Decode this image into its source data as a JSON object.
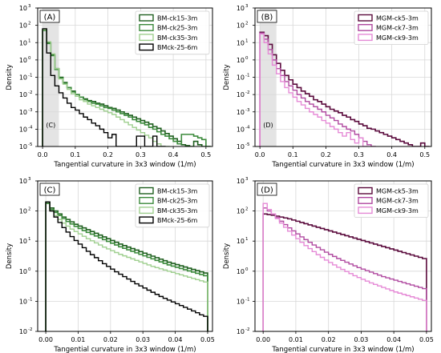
{
  "chart_data": [
    {
      "panel": "(A)",
      "type": "step-histogram",
      "ylabel": "Density",
      "xlabel": "Tangential curvature in 3x3 window (1/m)",
      "xlim": [
        -0.015,
        0.52
      ],
      "ylim_log10": [
        -5,
        3
      ],
      "xticks": [
        0.0,
        0.1,
        0.2,
        0.3,
        0.4,
        0.5
      ],
      "xtick_labels": [
        "0.0",
        "0.1",
        "0.2",
        "0.3",
        "0.4",
        "0.5"
      ],
      "ytick_exponents": [
        -5,
        -4,
        -3,
        -2,
        -1,
        0,
        1,
        2,
        3
      ],
      "yscale": "log",
      "grid": true,
      "legend_position": "top-right",
      "shaded_region": {
        "x0": 0.0,
        "x1": 0.05,
        "label": "(C)"
      },
      "bin_width": 0.0125,
      "x_start": 0.0,
      "series": [
        {
          "name": "BM-ck15-3m",
          "color": "#1f5f1f",
          "width": 1.6,
          "log10_density": [
            1.75,
            1.0,
            0.3,
            -0.5,
            -1.0,
            -1.3,
            -1.6,
            -1.8,
            -2.0,
            -2.15,
            -2.25,
            -2.35,
            -2.4,
            -2.5,
            -2.55,
            -2.65,
            -2.75,
            -2.8,
            -2.9,
            -3.0,
            -3.1,
            -3.2,
            -3.3,
            -3.4,
            -3.5,
            -3.6,
            -3.7,
            -3.85,
            -3.95,
            -4.1,
            -4.25,
            -4.4,
            -4.55,
            -4.7,
            -4.9,
            -4.95,
            -5.0,
            -4.7,
            -4.9,
            -5.0,
            -5.0
          ]
        },
        {
          "name": "BM-ck25-3m",
          "color": "#3c8a3c",
          "width": 1.6,
          "log10_density": [
            1.7,
            0.95,
            0.25,
            -0.55,
            -1.05,
            -1.35,
            -1.6,
            -1.85,
            -2.0,
            -2.15,
            -2.3,
            -2.4,
            -2.5,
            -2.55,
            -2.65,
            -2.75,
            -2.8,
            -2.9,
            -3.0,
            -3.1,
            -3.2,
            -3.3,
            -3.45,
            -3.55,
            -3.65,
            -3.75,
            -3.9,
            -4.0,
            -4.15,
            -4.3,
            -4.4,
            -4.55,
            -4.7,
            -4.85,
            -4.3,
            -4.3,
            -4.3,
            -4.4,
            -4.5,
            -4.6,
            -5.0
          ]
        },
        {
          "name": "BM-ck35-3m",
          "color": "#9fcf8f",
          "width": 1.4,
          "log10_density": [
            1.75,
            1.05,
            0.35,
            -0.5,
            -1.1,
            -1.4,
            -1.7,
            -1.95,
            -2.1,
            -2.3,
            -2.4,
            -2.55,
            -2.65,
            -2.75,
            -2.85,
            -2.95,
            -3.05,
            -3.15,
            -3.3,
            -3.45,
            -3.6,
            -3.75,
            -3.9,
            -4.05,
            -4.2,
            -4.35,
            -4.5,
            -4.7,
            -4.85,
            -5.0,
            -5.0
          ]
        },
        {
          "name": "BMck-25-6m",
          "color": "#000000",
          "width": 1.4,
          "log10_density": [
            1.8,
            0.4,
            -0.9,
            -1.5,
            -1.9,
            -2.2,
            -2.5,
            -2.75,
            -2.9,
            -3.1,
            -3.3,
            -3.45,
            -3.65,
            -3.8,
            -4.0,
            -4.2,
            -4.5,
            -4.3,
            -5.0,
            -5.0,
            -5.0,
            -5.0,
            -5.0,
            -4.4,
            -4.4,
            -5.0,
            -5.0,
            -4.4,
            -5.0,
            -5.0
          ]
        }
      ]
    },
    {
      "panel": "(B)",
      "type": "step-histogram",
      "ylabel": "Density",
      "xlabel": "Tangential curvature in 3x3 window (1/m)",
      "xlim": [
        -0.015,
        0.52
      ],
      "ylim_log10": [
        -5,
        3
      ],
      "xticks": [
        0.0,
        0.1,
        0.2,
        0.3,
        0.4,
        0.5
      ],
      "xtick_labels": [
        "0.0",
        "0.1",
        "0.2",
        "0.3",
        "0.4",
        "0.5"
      ],
      "ytick_exponents": [
        -5,
        -4,
        -3,
        -2,
        -1,
        0,
        1,
        2,
        3
      ],
      "yscale": "log",
      "grid": true,
      "legend_position": "top-right",
      "shaded_region": {
        "x0": 0.0,
        "x1": 0.05,
        "label": "(D)"
      },
      "bin_width": 0.0125,
      "x_start": 0.0,
      "series": [
        {
          "name": "MGM-ck5-3m",
          "color": "#5a0a3c",
          "width": 1.6,
          "log10_density": [
            1.6,
            1.4,
            0.9,
            0.3,
            -0.2,
            -0.6,
            -0.9,
            -1.15,
            -1.4,
            -1.6,
            -1.8,
            -1.95,
            -2.1,
            -2.3,
            -2.4,
            -2.55,
            -2.7,
            -2.85,
            -2.95,
            -3.05,
            -3.2,
            -3.3,
            -3.45,
            -3.55,
            -3.7,
            -3.8,
            -3.95,
            -4.0,
            -4.1,
            -4.2,
            -4.3,
            -4.4,
            -4.5,
            -4.6,
            -4.7,
            -4.8,
            -4.9,
            -5.0,
            -5.0,
            -4.8,
            -5.0
          ]
        },
        {
          "name": "MGM-ck7-3m",
          "color": "#b04aa0",
          "width": 1.4,
          "log10_density": [
            1.55,
            1.2,
            0.6,
            0.0,
            -0.5,
            -0.9,
            -1.25,
            -1.5,
            -1.75,
            -2.0,
            -2.2,
            -2.4,
            -2.55,
            -2.7,
            -2.85,
            -3.0,
            -3.2,
            -3.35,
            -3.5,
            -3.7,
            -3.85,
            -4.0,
            -4.1,
            -4.3,
            -4.5,
            -4.7,
            -4.9,
            -5.0
          ]
        },
        {
          "name": "MGM-ck9-3m",
          "color": "#e58ad6",
          "width": 1.4,
          "log10_density": [
            1.5,
            1.0,
            0.35,
            -0.3,
            -0.8,
            -1.25,
            -1.6,
            -1.9,
            -2.15,
            -2.4,
            -2.6,
            -2.8,
            -3.0,
            -3.15,
            -3.3,
            -3.5,
            -3.65,
            -3.85,
            -4.0,
            -4.2,
            -4.4,
            -4.2,
            -4.6,
            -4.8,
            -4.5,
            -5.0
          ]
        }
      ]
    },
    {
      "panel": "(C)",
      "type": "step-histogram",
      "ylabel": "Density",
      "xlabel": "Tangential curvature in 3x3 window (1/m)",
      "xlim": [
        -0.0025,
        0.0515
      ],
      "ylim_log10": [
        -2,
        3
      ],
      "xticks": [
        0.0,
        0.01,
        0.02,
        0.03,
        0.04,
        0.05
      ],
      "xtick_labels": [
        "0.00",
        "0.01",
        "0.02",
        "0.03",
        "0.04",
        "0.05"
      ],
      "ytick_exponents": [
        -2,
        -1,
        0,
        1,
        2,
        3
      ],
      "yscale": "log",
      "grid": true,
      "legend_position": "top-right",
      "bin_width": 0.00125,
      "x_start": 0.0,
      "series": [
        {
          "name": "BM-ck15-3m",
          "color": "#1f5f1f",
          "width": 1.6,
          "end_log10": -0.25,
          "log10_density": [
            2.3,
            2.1,
            2.0,
            1.9,
            1.8,
            1.72,
            1.64,
            1.56,
            1.5,
            1.44,
            1.38,
            1.32,
            1.26,
            1.2,
            1.14,
            1.08,
            1.02,
            0.96,
            0.9,
            0.85,
            0.8,
            0.75,
            0.7,
            0.65,
            0.6,
            0.55,
            0.5,
            0.45,
            0.4,
            0.35,
            0.3,
            0.26,
            0.22,
            0.18,
            0.14,
            0.1,
            0.06,
            0.02,
            -0.02,
            -0.06
          ]
        },
        {
          "name": "BM-ck25-3m",
          "color": "#3c8a3c",
          "width": 1.6,
          "end_log10": -0.35,
          "log10_density": [
            2.25,
            2.05,
            1.95,
            1.85,
            1.75,
            1.65,
            1.57,
            1.49,
            1.42,
            1.35,
            1.29,
            1.23,
            1.17,
            1.11,
            1.05,
            0.99,
            0.93,
            0.87,
            0.81,
            0.76,
            0.71,
            0.66,
            0.61,
            0.56,
            0.51,
            0.46,
            0.41,
            0.36,
            0.31,
            0.26,
            0.21,
            0.17,
            0.13,
            0.09,
            0.05,
            0.01,
            -0.03,
            -0.07,
            -0.11,
            -0.15
          ]
        },
        {
          "name": "BM-ck35-3m",
          "color": "#9fcf8f",
          "width": 1.4,
          "end_log10": -0.6,
          "log10_density": [
            2.3,
            2.0,
            1.85,
            1.72,
            1.6,
            1.5,
            1.4,
            1.32,
            1.24,
            1.16,
            1.08,
            1.01,
            0.94,
            0.87,
            0.8,
            0.74,
            0.68,
            0.62,
            0.56,
            0.51,
            0.46,
            0.41,
            0.36,
            0.31,
            0.26,
            0.21,
            0.16,
            0.12,
            0.08,
            0.04,
            0.0,
            -0.04,
            -0.08,
            -0.12,
            -0.16,
            -0.2,
            -0.24,
            -0.28,
            -0.32,
            -0.36
          ]
        },
        {
          "name": "BMck-25-6m",
          "color": "#000000",
          "width": 1.4,
          "end_log10": -1.95,
          "log10_density": [
            2.3,
            2.0,
            1.8,
            1.62,
            1.45,
            1.3,
            1.15,
            1.02,
            0.9,
            0.78,
            0.66,
            0.55,
            0.45,
            0.35,
            0.25,
            0.16,
            0.07,
            -0.02,
            -0.1,
            -0.18,
            -0.26,
            -0.34,
            -0.42,
            -0.49,
            -0.56,
            -0.63,
            -0.7,
            -0.77,
            -0.84,
            -0.9,
            -0.96,
            -1.02,
            -1.08,
            -1.14,
            -1.2,
            -1.26,
            -1.32,
            -1.38,
            -1.45,
            -1.5
          ]
        }
      ]
    },
    {
      "panel": "(D)",
      "type": "step-histogram",
      "ylabel": "Density",
      "xlabel": "Tangential curvature in 3x3 window (1/m)",
      "xlim": [
        -0.0025,
        0.0515
      ],
      "ylim_log10": [
        -2,
        3
      ],
      "xticks": [
        0.0,
        0.01,
        0.02,
        0.03,
        0.04,
        0.05
      ],
      "xtick_labels": [
        "0.00",
        "0.01",
        "0.02",
        "0.03",
        "0.04",
        "0.05"
      ],
      "ytick_exponents": [
        -2,
        -1,
        0,
        1,
        2,
        3
      ],
      "yscale": "log",
      "grid": true,
      "legend_position": "top-right",
      "bin_width": 0.00125,
      "x_start": 0.0,
      "series": [
        {
          "name": "MGM-ck5-3m",
          "color": "#5a0a3c",
          "width": 1.6,
          "end_log10": -2.0,
          "log10_density": [
            1.9,
            1.88,
            1.86,
            1.83,
            1.8,
            1.77,
            1.74,
            1.7,
            1.66,
            1.62,
            1.58,
            1.54,
            1.5,
            1.46,
            1.42,
            1.38,
            1.34,
            1.3,
            1.26,
            1.22,
            1.18,
            1.14,
            1.1,
            1.06,
            1.02,
            0.98,
            0.94,
            0.9,
            0.86,
            0.82,
            0.78,
            0.74,
            0.7,
            0.66,
            0.62,
            0.58,
            0.54,
            0.5,
            0.46,
            0.42
          ]
        },
        {
          "name": "MGM-ck7-3m",
          "color": "#b04aa0",
          "width": 1.4,
          "end_log10": -2.0,
          "log10_density": [
            2.1,
            2.0,
            1.9,
            1.78,
            1.66,
            1.55,
            1.44,
            1.34,
            1.24,
            1.14,
            1.05,
            0.96,
            0.87,
            0.79,
            0.71,
            0.63,
            0.56,
            0.49,
            0.42,
            0.36,
            0.3,
            0.24,
            0.18,
            0.12,
            0.07,
            0.02,
            -0.03,
            -0.08,
            -0.13,
            -0.18,
            -0.22,
            -0.26,
            -0.3,
            -0.34,
            -0.38,
            -0.42,
            -0.46,
            -0.5,
            -0.54,
            -0.58
          ]
        },
        {
          "name": "MGM-ck9-3m",
          "color": "#e58ad6",
          "width": 1.4,
          "end_log10": -2.0,
          "log10_density": [
            2.25,
            2.05,
            1.9,
            1.75,
            1.6,
            1.46,
            1.33,
            1.2,
            1.08,
            0.96,
            0.85,
            0.75,
            0.65,
            0.55,
            0.46,
            0.37,
            0.29,
            0.21,
            0.13,
            0.06,
            -0.01,
            -0.08,
            -0.15,
            -0.21,
            -0.27,
            -0.33,
            -0.39,
            -0.44,
            -0.49,
            -0.54,
            -0.59,
            -0.64,
            -0.69,
            -0.73,
            -0.77,
            -0.81,
            -0.85,
            -0.89,
            -0.93,
            -0.97
          ]
        }
      ]
    }
  ]
}
